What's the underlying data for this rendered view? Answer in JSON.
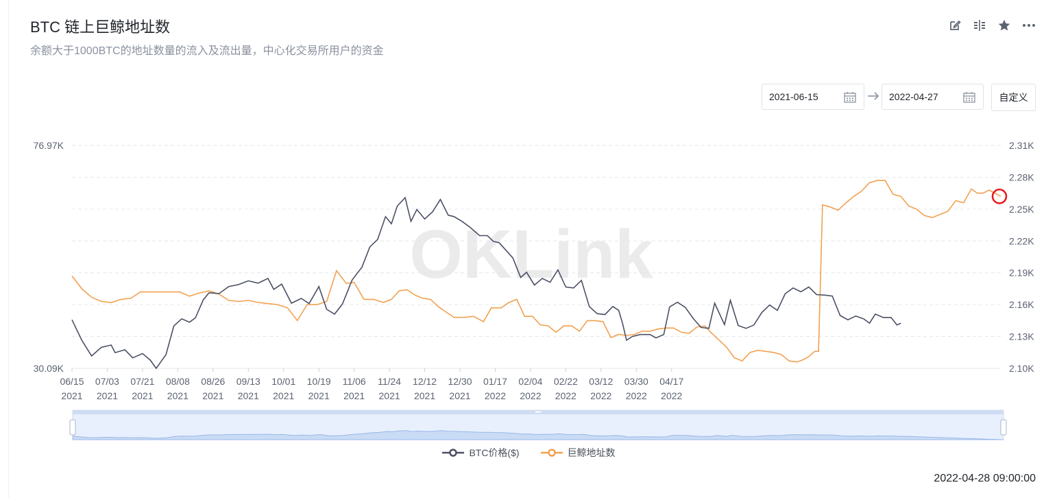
{
  "header": {
    "title": "BTC 链上巨鲸地址数",
    "subtitle": "余额大于1000BTC的地址数量的流入及流出量，中心化交易所用户的资金"
  },
  "toolbar": {
    "icons": [
      "edit-icon",
      "compare-icon",
      "star-icon",
      "more-icon"
    ]
  },
  "date_range": {
    "start": "2021-06-15",
    "end": "2022-04-27",
    "custom_label": "自定义"
  },
  "watermark": "OKLink",
  "legend": {
    "price_label": "BTC价格($)",
    "whale_label": "巨鲸地址数"
  },
  "timestamp": "2022-04-28 09:00:00",
  "colors": {
    "price": "#4a4f63",
    "whale": "#f2a04f",
    "grid": "#e3e6eb",
    "highlight": "#e8161a"
  },
  "chart_data": {
    "type": "line",
    "x_labels": [
      [
        "06/15",
        "2021"
      ],
      [
        "07/03",
        "2021"
      ],
      [
        "07/21",
        "2021"
      ],
      [
        "08/08",
        "2021"
      ],
      [
        "08/26",
        "2021"
      ],
      [
        "09/13",
        "2021"
      ],
      [
        "10/01",
        "2021"
      ],
      [
        "10/19",
        "2021"
      ],
      [
        "11/06",
        "2021"
      ],
      [
        "11/24",
        "2021"
      ],
      [
        "12/12",
        "2021"
      ],
      [
        "12/30",
        "2021"
      ],
      [
        "01/17",
        "2022"
      ],
      [
        "02/04",
        "2022"
      ],
      [
        "02/22",
        "2022"
      ],
      [
        "03/12",
        "2022"
      ],
      [
        "03/30",
        "2022"
      ],
      [
        "04/17",
        "2022"
      ]
    ],
    "left_axis": {
      "min_label": "30.09K",
      "max_label": "76.97K",
      "min": 30090,
      "max": 76970
    },
    "right_axis": {
      "ticks": [
        "2.10K",
        "2.13K",
        "2.16K",
        "2.19K",
        "2.22K",
        "2.25K",
        "2.28K",
        "2.31K"
      ],
      "min": 2100,
      "max": 2310
    },
    "series": [
      {
        "name": "BTC价格($)",
        "axis": "left",
        "points": [
          [
            0,
            40300
          ],
          [
            5,
            36000
          ],
          [
            10,
            32700
          ],
          [
            15,
            34500
          ],
          [
            20,
            35000
          ],
          [
            22,
            33400
          ],
          [
            27,
            34000
          ],
          [
            31,
            32300
          ],
          [
            36,
            33200
          ],
          [
            40,
            31800
          ],
          [
            43,
            30090
          ],
          [
            48,
            33000
          ],
          [
            52,
            39000
          ],
          [
            56,
            40500
          ],
          [
            60,
            39800
          ],
          [
            63,
            40700
          ],
          [
            67,
            44500
          ],
          [
            70,
            46000
          ],
          [
            75,
            45800
          ],
          [
            80,
            47300
          ],
          [
            85,
            47700
          ],
          [
            90,
            48500
          ],
          [
            95,
            48000
          ],
          [
            100,
            49000
          ],
          [
            103,
            46700
          ],
          [
            107,
            47800
          ],
          [
            112,
            43800
          ],
          [
            117,
            44800
          ],
          [
            121,
            43700
          ],
          [
            126,
            47300
          ],
          [
            130,
            42500
          ],
          [
            134,
            41500
          ],
          [
            138,
            43600
          ],
          [
            143,
            48700
          ],
          [
            148,
            51400
          ],
          [
            152,
            55600
          ],
          [
            156,
            57200
          ],
          [
            160,
            62000
          ],
          [
            163,
            60500
          ],
          [
            166,
            64200
          ],
          [
            170,
            66000
          ],
          [
            173,
            61000
          ],
          [
            176,
            63500
          ],
          [
            180,
            61500
          ],
          [
            184,
            63000
          ],
          [
            188,
            65600
          ],
          [
            192,
            62300
          ],
          [
            195,
            62000
          ],
          [
            199,
            61000
          ],
          [
            203,
            59800
          ],
          [
            208,
            58000
          ],
          [
            212,
            58000
          ],
          [
            215,
            56800
          ],
          [
            218,
            56500
          ],
          [
            222,
            54700
          ],
          [
            225,
            53300
          ],
          [
            229,
            49200
          ],
          [
            232,
            50300
          ],
          [
            236,
            47600
          ],
          [
            240,
            49000
          ],
          [
            244,
            48200
          ],
          [
            248,
            50800
          ],
          [
            252,
            47200
          ],
          [
            256,
            47000
          ],
          [
            260,
            48600
          ],
          [
            264,
            43100
          ],
          [
            268,
            41600
          ],
          [
            272,
            41400
          ],
          [
            276,
            43100
          ],
          [
            279,
            42300
          ],
          [
            281,
            39500
          ],
          [
            283,
            36000
          ],
          [
            286,
            36800
          ],
          [
            290,
            37200
          ],
          [
            295,
            37200
          ],
          [
            298,
            36500
          ],
          [
            302,
            37200
          ],
          [
            305,
            43000
          ],
          [
            309,
            44000
          ],
          [
            313,
            42900
          ],
          [
            317,
            40600
          ],
          [
            321,
            38700
          ],
          [
            325,
            38500
          ],
          [
            328,
            43800
          ],
          [
            333,
            39300
          ],
          [
            336,
            44400
          ],
          [
            340,
            39100
          ],
          [
            344,
            38500
          ],
          [
            348,
            39200
          ],
          [
            352,
            41800
          ],
          [
            356,
            43400
          ],
          [
            360,
            42300
          ],
          [
            364,
            45800
          ],
          [
            368,
            47000
          ],
          [
            372,
            46200
          ],
          [
            376,
            47200
          ],
          [
            380,
            45600
          ],
          [
            384,
            45500
          ],
          [
            388,
            45300
          ],
          [
            392,
            41200
          ],
          [
            396,
            40300
          ],
          [
            400,
            41100
          ],
          [
            404,
            40500
          ],
          [
            407,
            39600
          ],
          [
            410,
            41500
          ],
          [
            414,
            40800
          ],
          [
            418,
            40800
          ],
          [
            421,
            39200
          ],
          [
            423,
            39600
          ]
        ]
      },
      {
        "name": "巨鲸地址数",
        "axis": "right",
        "points": [
          [
            0,
            2187
          ],
          [
            5,
            2175
          ],
          [
            10,
            2167
          ],
          [
            15,
            2163
          ],
          [
            20,
            2162
          ],
          [
            25,
            2165
          ],
          [
            30,
            2166
          ],
          [
            35,
            2172
          ],
          [
            40,
            2172
          ],
          [
            45,
            2172
          ],
          [
            50,
            2172
          ],
          [
            55,
            2172
          ],
          [
            60,
            2168
          ],
          [
            65,
            2171
          ],
          [
            70,
            2173
          ],
          [
            75,
            2170
          ],
          [
            80,
            2164
          ],
          [
            85,
            2163
          ],
          [
            90,
            2164
          ],
          [
            95,
            2162
          ],
          [
            100,
            2161
          ],
          [
            105,
            2160
          ],
          [
            110,
            2157
          ],
          [
            115,
            2145
          ],
          [
            120,
            2160
          ],
          [
            125,
            2160
          ],
          [
            130,
            2163
          ],
          [
            135,
            2192
          ],
          [
            140,
            2180
          ],
          [
            144,
            2181
          ],
          [
            149,
            2165
          ],
          [
            154,
            2165
          ],
          [
            159,
            2162
          ],
          [
            163,
            2165
          ],
          [
            167,
            2173
          ],
          [
            171,
            2174
          ],
          [
            175,
            2169
          ],
          [
            179,
            2166
          ],
          [
            183,
            2165
          ],
          [
            187,
            2158
          ],
          [
            191,
            2153
          ],
          [
            195,
            2148
          ],
          [
            200,
            2148
          ],
          [
            205,
            2149
          ],
          [
            210,
            2144
          ],
          [
            214,
            2157
          ],
          [
            219,
            2157
          ],
          [
            223,
            2162
          ],
          [
            227,
            2165
          ],
          [
            231,
            2149
          ],
          [
            235,
            2149
          ],
          [
            239,
            2141
          ],
          [
            243,
            2140
          ],
          [
            247,
            2134
          ],
          [
            251,
            2140
          ],
          [
            255,
            2140
          ],
          [
            259,
            2135
          ],
          [
            263,
            2145
          ],
          [
            267,
            2145
          ],
          [
            271,
            2144
          ],
          [
            275,
            2129
          ],
          [
            279,
            2132
          ],
          [
            283,
            2131
          ],
          [
            287,
            2132
          ],
          [
            291,
            2135
          ],
          [
            295,
            2135
          ],
          [
            299,
            2137
          ],
          [
            303,
            2138
          ],
          [
            307,
            2138
          ],
          [
            311,
            2134
          ],
          [
            315,
            2133
          ],
          [
            319,
            2139
          ],
          [
            323,
            2140
          ],
          [
            326,
            2134
          ],
          [
            330,
            2127
          ],
          [
            334,
            2120
          ],
          [
            338,
            2110
          ],
          [
            342,
            2107
          ],
          [
            346,
            2115
          ],
          [
            350,
            2117
          ],
          [
            354,
            2116
          ],
          [
            358,
            2115
          ],
          [
            362,
            2113
          ],
          [
            366,
            2107
          ],
          [
            370,
            2106
          ],
          [
            373,
            2108
          ],
          [
            376,
            2111
          ],
          [
            379,
            2116
          ],
          [
            381,
            2116
          ],
          [
            383,
            2254
          ],
          [
            387,
            2252
          ],
          [
            391,
            2249
          ],
          [
            395,
            2256
          ],
          [
            399,
            2262
          ],
          [
            403,
            2267
          ],
          [
            407,
            2275
          ],
          [
            411,
            2277
          ],
          [
            415,
            2277
          ],
          [
            419,
            2264
          ],
          [
            423,
            2262
          ],
          [
            427,
            2253
          ],
          [
            431,
            2250
          ],
          [
            435,
            2244
          ],
          [
            439,
            2242
          ],
          [
            443,
            2245
          ],
          [
            447,
            2248
          ],
          [
            451,
            2258
          ],
          [
            455,
            2256
          ],
          [
            459,
            2269
          ],
          [
            462,
            2265
          ],
          [
            465,
            2265
          ],
          [
            468,
            2268
          ],
          [
            471,
            2265
          ],
          [
            474,
            2262
          ]
        ]
      }
    ]
  }
}
